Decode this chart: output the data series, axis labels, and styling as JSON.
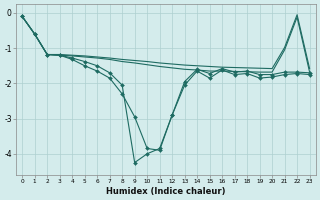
{
  "xlabel": "Humidex (Indice chaleur)",
  "background_color": "#d4ecec",
  "grid_color": "#aed0d0",
  "line_color": "#1e6b62",
  "x": [
    0,
    1,
    2,
    3,
    4,
    5,
    6,
    7,
    8,
    9,
    10,
    11,
    12,
    13,
    14,
    15,
    16,
    17,
    18,
    19,
    20,
    21,
    22,
    23
  ],
  "curve_zigzag": [
    -0.1,
    -0.6,
    -1.18,
    -1.2,
    -1.32,
    -1.5,
    -1.65,
    -1.85,
    -2.3,
    -2.95,
    -3.85,
    -3.9,
    -2.9,
    -2.05,
    -1.65,
    -1.85,
    -1.62,
    -1.75,
    -1.72,
    -1.85,
    -1.82,
    -1.75,
    -1.72,
    -1.75
  ],
  "curve_deep": [
    -0.1,
    -0.6,
    -1.18,
    -1.2,
    -1.28,
    -1.38,
    -1.5,
    -1.7,
    -2.05,
    -4.25,
    -4.0,
    -3.85,
    -2.9,
    -1.95,
    -1.6,
    -1.72,
    -1.58,
    -1.68,
    -1.65,
    -1.75,
    -1.75,
    -1.68,
    -1.68,
    -1.7
  ],
  "curve_top_rise": [
    -0.1,
    -0.6,
    -1.18,
    -1.2,
    -1.22,
    -1.25,
    -1.28,
    -1.32,
    -1.38,
    -1.42,
    -1.47,
    -1.52,
    -1.56,
    -1.6,
    -1.62,
    -1.65,
    -1.65,
    -1.66,
    -1.67,
    -1.68,
    -1.68,
    -1.05,
    -0.12,
    -1.68
  ],
  "curve_upper": [
    -0.1,
    -0.6,
    -1.18,
    -1.18,
    -1.2,
    -1.22,
    -1.25,
    -1.28,
    -1.32,
    -1.35,
    -1.38,
    -1.42,
    -1.45,
    -1.48,
    -1.5,
    -1.52,
    -1.54,
    -1.55,
    -1.56,
    -1.57,
    -1.58,
    -0.98,
    -0.05,
    -1.58
  ],
  "ylim": [
    -4.6,
    0.25
  ],
  "xlim": [
    -0.5,
    23.5
  ],
  "yticks": [
    0,
    -1,
    -2,
    -3,
    -4
  ],
  "xticks": [
    0,
    1,
    2,
    3,
    4,
    5,
    6,
    7,
    8,
    9,
    10,
    11,
    12,
    13,
    14,
    15,
    16,
    17,
    18,
    19,
    20,
    21,
    22,
    23
  ],
  "figsize": [
    3.2,
    2.0
  ],
  "dpi": 100
}
